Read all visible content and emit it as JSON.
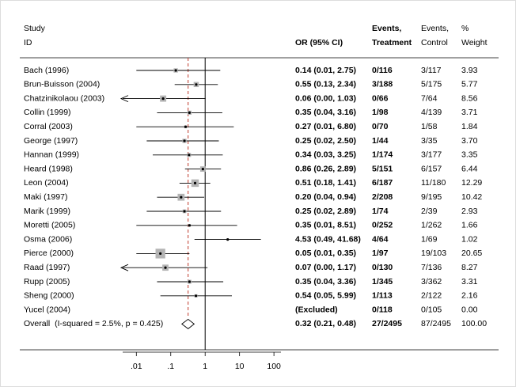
{
  "chart_data": {
    "type": "forest",
    "headers": {
      "study": [
        "Study",
        "ID"
      ],
      "or": "OR (95% CI)",
      "treatment": [
        "Events,",
        "Treatment"
      ],
      "control": [
        "Events,",
        "Control"
      ],
      "weight": [
        "%",
        "Weight"
      ]
    },
    "log_scale": true,
    "xlim": [
      0.004,
      160
    ],
    "xticks": [
      {
        "value": 0.01,
        "label": ".01"
      },
      {
        "value": 0.1,
        "label": ".1"
      },
      1,
      10,
      100
    ],
    "reference_line": 1,
    "square_color": "#b4b4b4",
    "overall_line_color": "#c0392b",
    "studies": [
      {
        "name": "Bach (1996)",
        "or": 0.14,
        "lower": 0.01,
        "upper": 2.75,
        "or_label": "0.14 (0.01, 2.75)",
        "treatment": "0/116",
        "control": "3/117",
        "weight": 3.93,
        "weight_label": "3.93"
      },
      {
        "name": "Brun-Buisson (2004)",
        "or": 0.55,
        "lower": 0.13,
        "upper": 2.34,
        "or_label": "0.55 (0.13, 2.34)",
        "treatment": "3/188",
        "control": "5/175",
        "weight": 5.77,
        "weight_label": "5.77"
      },
      {
        "name": "Chatzinikolaou (2003)",
        "or": 0.06,
        "lower": 0.0,
        "upper": 1.03,
        "or_label": "0.06 (0.00, 1.03)",
        "treatment": "0/66",
        "control": "7/64",
        "weight": 8.56,
        "weight_label": "8.56"
      },
      {
        "name": "Collin (1999)",
        "or": 0.35,
        "lower": 0.04,
        "upper": 3.16,
        "or_label": "0.35 (0.04, 3.16)",
        "treatment": "1/98",
        "control": "4/139",
        "weight": 3.71,
        "weight_label": "3.71"
      },
      {
        "name": "Corral (2003)",
        "or": 0.27,
        "lower": 0.01,
        "upper": 6.8,
        "or_label": "0.27 (0.01, 6.80)",
        "treatment": "0/70",
        "control": "1/58",
        "weight": 1.84,
        "weight_label": "1.84"
      },
      {
        "name": "George (1997)",
        "or": 0.25,
        "lower": 0.02,
        "upper": 2.5,
        "or_label": "0.25 (0.02, 2.50)",
        "treatment": "1/44",
        "control": "3/35",
        "weight": 3.7,
        "weight_label": "3.70"
      },
      {
        "name": "Hannan (1999)",
        "or": 0.34,
        "lower": 0.03,
        "upper": 3.25,
        "or_label": "0.34 (0.03, 3.25)",
        "treatment": "1/174",
        "control": "3/177",
        "weight": 3.35,
        "weight_label": "3.35"
      },
      {
        "name": "Heard (1998)",
        "or": 0.86,
        "lower": 0.26,
        "upper": 2.89,
        "or_label": "0.86 (0.26, 2.89)",
        "treatment": "5/151",
        "control": "6/157",
        "weight": 6.44,
        "weight_label": "6.44"
      },
      {
        "name": "Leon (2004)",
        "or": 0.51,
        "lower": 0.18,
        "upper": 1.41,
        "or_label": "0.51 (0.18, 1.41)",
        "treatment": "6/187",
        "control": "11/180",
        "weight": 12.29,
        "weight_label": "12.29"
      },
      {
        "name": "Maki (1997)",
        "or": 0.2,
        "lower": 0.04,
        "upper": 0.94,
        "or_label": "0.20 (0.04, 0.94)",
        "treatment": "2/208",
        "control": "9/195",
        "weight": 10.42,
        "weight_label": "10.42"
      },
      {
        "name": "Marik (1999)",
        "or": 0.25,
        "lower": 0.02,
        "upper": 2.89,
        "or_label": "0.25 (0.02, 2.89)",
        "treatment": "1/74",
        "control": "2/39",
        "weight": 2.93,
        "weight_label": "2.93"
      },
      {
        "name": "Moretti (2005)",
        "or": 0.35,
        "lower": 0.01,
        "upper": 8.51,
        "or_label": "0.35 (0.01, 8.51)",
        "treatment": "0/252",
        "control": "1/262",
        "weight": 1.66,
        "weight_label": "1.66"
      },
      {
        "name": "Osma (2006)",
        "or": 4.53,
        "lower": 0.49,
        "upper": 41.68,
        "or_label": "4.53 (0.49, 41.68)",
        "treatment": "4/64",
        "control": "1/69",
        "weight": 1.02,
        "weight_label": "1.02"
      },
      {
        "name": "Pierce (2000)",
        "or": 0.05,
        "lower": 0.01,
        "upper": 0.35,
        "or_label": "0.05 (0.01, 0.35)",
        "treatment": "1/97",
        "control": "19/103",
        "weight": 20.65,
        "weight_label": "20.65"
      },
      {
        "name": "Raad (1997)",
        "or": 0.07,
        "lower": 0.0,
        "upper": 1.17,
        "or_label": "0.07 (0.00, 1.17)",
        "treatment": "0/130",
        "control": "7/136",
        "weight": 8.27,
        "weight_label": "8.27"
      },
      {
        "name": "Rupp (2005)",
        "or": 0.35,
        "lower": 0.04,
        "upper": 3.36,
        "or_label": "0.35 (0.04, 3.36)",
        "treatment": "1/345",
        "control": "3/362",
        "weight": 3.31,
        "weight_label": "3.31"
      },
      {
        "name": "Sheng (2000)",
        "or": 0.54,
        "lower": 0.05,
        "upper": 5.99,
        "or_label": "0.54 (0.05, 5.99)",
        "treatment": "1/113",
        "control": "2/122",
        "weight": 2.16,
        "weight_label": "2.16"
      },
      {
        "name": "Yucel (2004)",
        "or": null,
        "lower": null,
        "upper": null,
        "or_label": "(Excluded)",
        "treatment": "0/118",
        "control": "0/105",
        "weight": 0,
        "weight_label": "0.00"
      }
    ],
    "overall": {
      "name": "Overall  (I-squared = 2.5%, p = 0.425)",
      "or": 0.32,
      "lower": 0.21,
      "upper": 0.48,
      "or_label": "0.32 (0.21, 0.48)",
      "treatment": "27/2495",
      "control": "87/2495",
      "weight": 100,
      "weight_label": "100.00"
    }
  }
}
